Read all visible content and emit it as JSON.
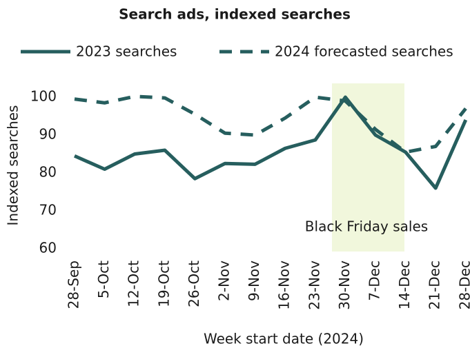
{
  "chart_data": {
    "type": "line",
    "title": "Search ads, indexed searches",
    "x_label": "Week start date (2024)",
    "y_label": "Indexed searches",
    "annotation": "Black Friday sales",
    "categories": [
      "28-Sep",
      "5-Oct",
      "12-Oct",
      "19-Oct",
      "26-Oct",
      "2-Nov",
      "9-Nov",
      "16-Nov",
      "23-Nov",
      "30-Nov",
      "7-Dec",
      "14-Dec",
      "21-Dec",
      "28-Dec"
    ],
    "series": [
      {
        "name": "2023 searches",
        "color": "#265e5e",
        "dash": false,
        "values": [
          84.5,
          81,
          85,
          86,
          78.5,
          82.5,
          82.3,
          86.5,
          88.7,
          100,
          90,
          85.5,
          76,
          94
        ]
      },
      {
        "name": "2024 forecasted searches",
        "color": "#265e5e",
        "dash": true,
        "values": [
          99.5,
          98.5,
          100.2,
          99.8,
          95.5,
          90.5,
          90,
          94.5,
          100,
          99,
          91.5,
          85.5,
          87,
          97
        ]
      }
    ],
    "ylim": [
      60,
      100
    ],
    "yticks": [
      60,
      70,
      80,
      90,
      100
    ],
    "grid": false
  }
}
